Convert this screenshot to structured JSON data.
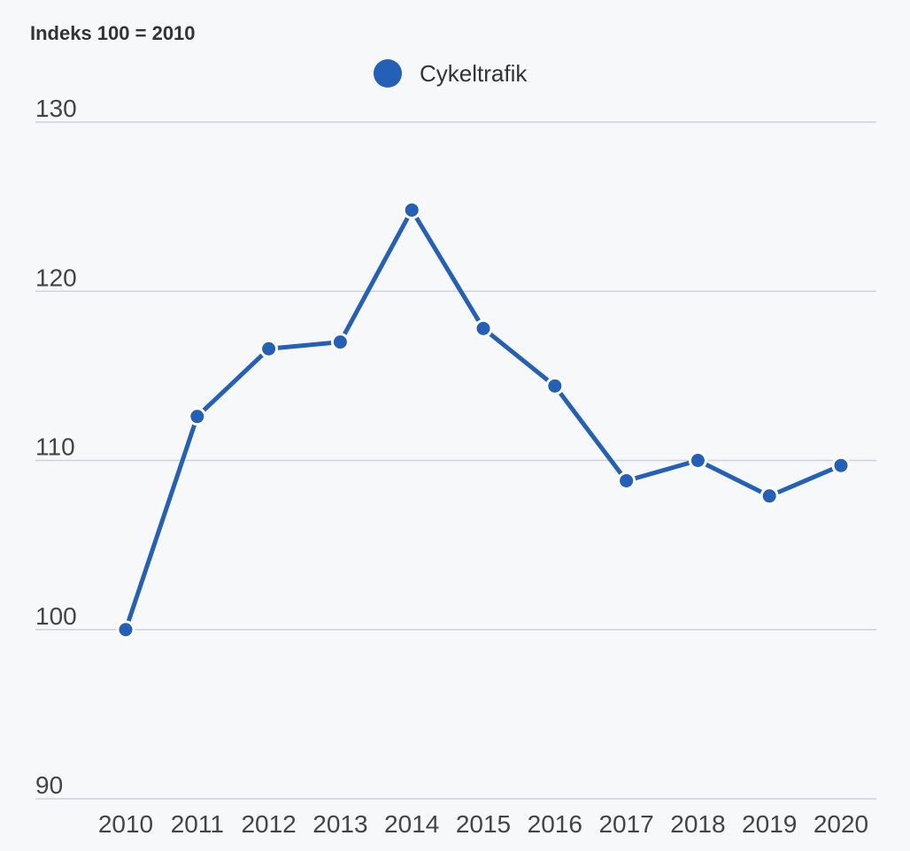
{
  "chart_data": {
    "type": "line",
    "unit_label": "Indeks 100 = 2010",
    "x": [
      "2010",
      "2011",
      "2012",
      "2013",
      "2014",
      "2015",
      "2016",
      "2017",
      "2018",
      "2019",
      "2020"
    ],
    "series": [
      {
        "name": "Cykeltrafik",
        "color": "#2460b5",
        "values": [
          100,
          112.6,
          116.6,
          117.0,
          124.8,
          117.8,
          114.4,
          108.8,
          110.0,
          107.9,
          109.7
        ]
      }
    ],
    "ylim": [
      90,
      130
    ],
    "yticks": [
      90,
      100,
      110,
      120,
      130
    ],
    "grid": true,
    "legend_position": "top-center"
  }
}
